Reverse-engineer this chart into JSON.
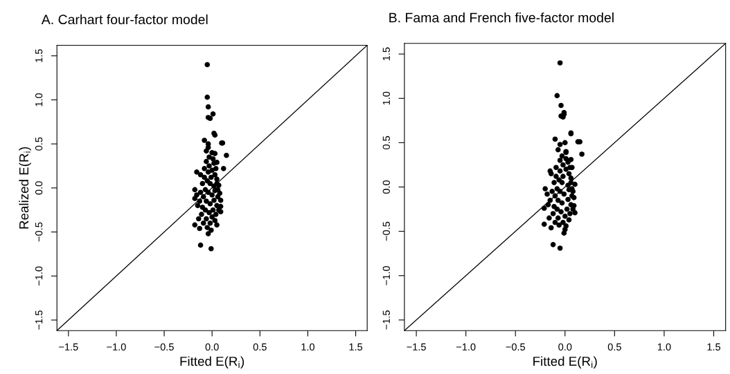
{
  "chart_data": [
    {
      "type": "scatter",
      "title": "A. Carhart four-factor model",
      "xlabel": "Fitted E(R$_{i}$)",
      "ylabel": "Realized E(R$_{i}$)",
      "xlim": [
        -1.62,
        1.62
      ],
      "ylim": [
        -1.62,
        1.62
      ],
      "xticks": [
        {
          "value": -1.5,
          "label": "−1.5"
        },
        {
          "value": -1.0,
          "label": "−1.0"
        },
        {
          "value": -0.5,
          "label": "−0.5"
        },
        {
          "value": 0.0,
          "label": "0.0"
        },
        {
          "value": 0.5,
          "label": "0.5"
        },
        {
          "value": 1.0,
          "label": "1.0"
        },
        {
          "value": 1.5,
          "label": "1.5"
        }
      ],
      "yticks": [
        {
          "value": -1.5,
          "label": "−1.5"
        },
        {
          "value": -1.0,
          "label": "−1.0"
        },
        {
          "value": -0.5,
          "label": "−0.5"
        },
        {
          "value": 0.0,
          "label": "0.0"
        },
        {
          "value": 0.5,
          "label": "0.5"
        },
        {
          "value": 1.0,
          "label": "1.0"
        },
        {
          "value": 1.5,
          "label": "1.5"
        }
      ],
      "grid": false,
      "legend": false,
      "series": [
        {
          "marker": "circle",
          "color": "#000000",
          "x": [
            -0.05,
            -0.05,
            -0.04,
            0.01,
            -0.04,
            -0.02,
            0.02,
            0.03,
            -0.08,
            0.1,
            0.11,
            -0.04,
            -0.04,
            0.15,
            0.03,
            0.12,
            -0.18,
            -0.18,
            -0.16,
            -0.12,
            -0.01,
            -0.04,
            -0.18,
            -0.13,
            0.05,
            0.09,
            0.09,
            0.09,
            0.08,
            0.07,
            0.05,
            0.01,
            -0.06,
            -0.03,
            0.0,
            0.03,
            -0.08,
            -0.05,
            -0.02,
            0.02,
            0.05,
            -0.1,
            -0.12,
            -0.07,
            -0.04,
            0.0,
            0.03,
            0.06,
            -0.09,
            -0.13,
            -0.06,
            -0.02,
            0.02,
            0.05,
            -0.1,
            -0.15,
            -0.07,
            -0.03,
            0.01,
            0.04,
            -0.11,
            -0.14,
            -0.06,
            -0.02,
            0.03,
            -0.09,
            -0.05,
            0.0,
            0.06,
            -0.01,
            0.02,
            -0.04,
            -0.08,
            0.04,
            -0.12,
            -0.16,
            0.07,
            -0.01,
            0.05,
            -0.03,
            0.0,
            -0.06
          ],
          "values": [
            1.4,
            1.03,
            0.92,
            0.84,
            0.8,
            0.79,
            0.62,
            0.6,
            0.54,
            0.51,
            0.51,
            0.5,
            0.46,
            0.37,
            0.39,
            0.22,
            -0.02,
            -0.12,
            0.18,
            -0.65,
            -0.69,
            -0.52,
            -0.42,
            -0.46,
            -0.42,
            -0.27,
            -0.21,
            -0.14,
            -0.06,
            0.03,
            0.29,
            0.33,
            0.3,
            0.25,
            0.2,
            0.15,
            0.12,
            0.08,
            0.05,
            0.02,
            0.1,
            0.05,
            0.15,
            -0.02,
            -0.05,
            -0.08,
            -0.03,
            -0.1,
            -0.1,
            -0.15,
            -0.15,
            -0.18,
            -0.14,
            -0.2,
            -0.22,
            -0.2,
            -0.25,
            -0.28,
            -0.25,
            -0.3,
            -0.3,
            -0.35,
            -0.35,
            -0.4,
            -0.37,
            -0.4,
            -0.45,
            -0.33,
            -0.02,
            0.12,
            0.28,
            0.18,
            0.22,
            0.22,
            -0.05,
            -0.08,
            -0.25,
            -0.48,
            0.05,
            0.35,
            0.4,
            0.42
          ]
        },
        {
          "type": "line",
          "color": "#000000",
          "line_style": "solid",
          "x": [
            -1.62,
            1.62
          ],
          "values": [
            -1.62,
            1.62
          ]
        }
      ]
    },
    {
      "type": "scatter",
      "title": "B. Fama and French five-factor model",
      "xlabel": "Fitted E(R$_{i}$)",
      "xlim": [
        -1.62,
        1.62
      ],
      "ylim": [
        -1.62,
        1.62
      ],
      "xticks": [
        {
          "value": -1.5,
          "label": "−1.5"
        },
        {
          "value": -1.0,
          "label": "−1.0"
        },
        {
          "value": -0.5,
          "label": "−0.5"
        },
        {
          "value": 0.0,
          "label": "0.0"
        },
        {
          "value": 0.5,
          "label": "0.5"
        },
        {
          "value": 1.0,
          "label": "1.0"
        },
        {
          "value": 1.5,
          "label": "1.5"
        }
      ],
      "yticks": [
        {
          "value": -1.5,
          "label": "−1.5"
        },
        {
          "value": -1.0,
          "label": "−1.0"
        },
        {
          "value": -0.5,
          "label": "−0.5"
        },
        {
          "value": 0.0,
          "label": "0.0"
        },
        {
          "value": 0.5,
          "label": "0.5"
        },
        {
          "value": 1.0,
          "label": "1.0"
        },
        {
          "value": 1.5,
          "label": "1.5"
        }
      ],
      "grid": false,
      "legend": false,
      "series": [
        {
          "marker": "circle",
          "color": "#000000",
          "x": [
            -0.05,
            -0.08,
            -0.04,
            -0.01,
            -0.01,
            -0.04,
            -0.02,
            0.06,
            0.06,
            -0.1,
            0.13,
            0.15,
            0.0,
            -0.05,
            0.17,
            0.01,
            0.07,
            -0.2,
            -0.21,
            -0.15,
            -0.12,
            -0.05,
            -0.01,
            -0.21,
            -0.14,
            0.01,
            0.1,
            0.09,
            0.09,
            0.08,
            0.1,
            0.06,
            0.01,
            -0.05,
            -0.02,
            0.01,
            0.04,
            -0.09,
            -0.06,
            -0.03,
            0.03,
            0.06,
            -0.11,
            -0.14,
            -0.08,
            -0.05,
            -0.01,
            0.04,
            0.07,
            -0.1,
            -0.15,
            -0.07,
            -0.03,
            0.03,
            0.06,
            -0.11,
            -0.17,
            -0.08,
            -0.04,
            0.02,
            0.05,
            -0.12,
            -0.16,
            -0.07,
            -0.02,
            0.04,
            -0.1,
            -0.06,
            0.0,
            0.07,
            -0.02,
            0.03,
            -0.05,
            -0.09,
            0.05,
            -0.13,
            -0.18,
            0.08,
            0.0,
            0.06,
            -0.03,
            0.01,
            -0.07
          ],
          "values": [
            1.4,
            1.03,
            0.92,
            0.84,
            0.82,
            0.8,
            0.79,
            0.61,
            0.6,
            0.54,
            0.51,
            0.51,
            0.5,
            0.48,
            0.37,
            0.39,
            0.22,
            -0.02,
            -0.24,
            0.18,
            -0.65,
            -0.69,
            -0.52,
            -0.42,
            -0.46,
            -0.44,
            -0.29,
            -0.21,
            -0.12,
            -0.05,
            0.03,
            0.31,
            0.32,
            0.3,
            0.25,
            0.2,
            0.15,
            0.12,
            0.08,
            0.05,
            0.02,
            0.1,
            0.05,
            0.15,
            -0.02,
            -0.05,
            -0.08,
            -0.03,
            -0.1,
            -0.1,
            -0.15,
            -0.15,
            -0.18,
            -0.14,
            -0.2,
            -0.22,
            -0.2,
            -0.25,
            -0.28,
            -0.25,
            -0.3,
            -0.3,
            -0.35,
            -0.35,
            -0.4,
            -0.37,
            -0.4,
            -0.43,
            -0.33,
            -0.02,
            0.12,
            0.28,
            0.18,
            0.22,
            0.22,
            -0.05,
            -0.08,
            -0.25,
            -0.48,
            0.05,
            0.35,
            0.4,
            0.42
          ]
        },
        {
          "type": "line",
          "color": "#000000",
          "line_style": "solid",
          "x": [
            -1.62,
            1.62
          ],
          "values": [
            -1.62,
            1.62
          ]
        }
      ]
    }
  ]
}
